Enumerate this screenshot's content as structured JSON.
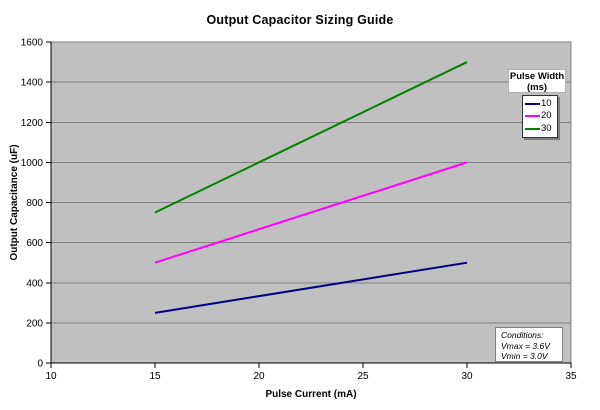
{
  "title": "Output Capacitor Sizing Guide",
  "chart_data": {
    "type": "line",
    "title": "Output Capacitor Sizing Guide",
    "xlabel": "Pulse Current (mA)",
    "ylabel": "Output Capacitance (uF)",
    "xlim": [
      10,
      35
    ],
    "ylim": [
      0,
      1600
    ],
    "x_ticks": [
      10,
      15,
      20,
      25,
      30,
      35
    ],
    "y_ticks": [
      0,
      200,
      400,
      600,
      800,
      1000,
      1200,
      1400,
      1600
    ],
    "grid": "horizontal",
    "plot_bg_color": "#c0c0c0",
    "gridline_color": "#808080",
    "axis_color": "#000000",
    "legend_position": "right-top-inside",
    "series": [
      {
        "name": "10",
        "color": "#000080",
        "points": [
          [
            15,
            250
          ],
          [
            30,
            500
          ]
        ]
      },
      {
        "name": "20",
        "color": "#ff00ff",
        "points": [
          [
            15,
            500
          ],
          [
            30,
            1000
          ]
        ]
      },
      {
        "name": "30",
        "color": "#008000",
        "points": [
          [
            15,
            750
          ],
          [
            30,
            1500
          ]
        ]
      }
    ]
  },
  "legend": {
    "title_line1": "Pulse Width",
    "title_line2": "(ms)",
    "entries": [
      {
        "label": "10",
        "color": "#000080"
      },
      {
        "label": "20",
        "color": "#ff00ff"
      },
      {
        "label": "30",
        "color": "#008000"
      }
    ]
  },
  "conditions": {
    "line1": "Conditions:",
    "line2": "Vmax = 3.6V",
    "line3": "Vmin = 3.0V"
  }
}
